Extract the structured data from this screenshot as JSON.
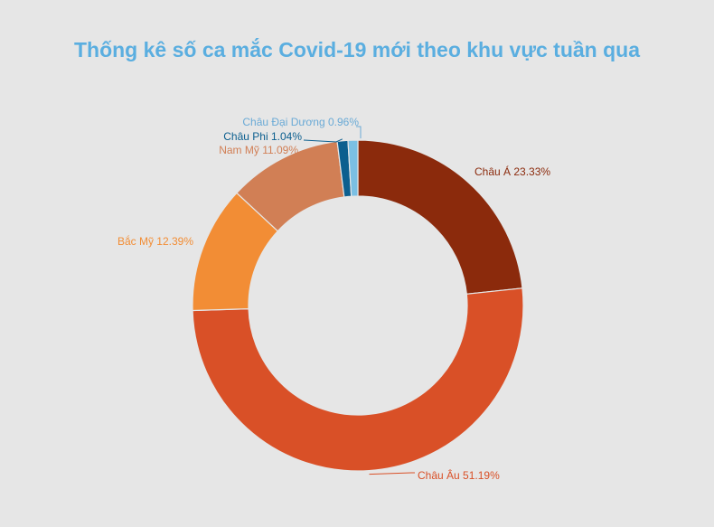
{
  "chart_data": {
    "type": "pie",
    "title": "Thống kê số ca mắc Covid-19 mới theo khu vực tuần qua",
    "categories": [
      "Châu Á",
      "Châu Âu",
      "Bắc Mỹ",
      "Nam Mỹ",
      "Châu Phi",
      "Châu Đại Dương"
    ],
    "values": [
      23.33,
      51.19,
      12.39,
      11.09,
      1.04,
      0.96
    ],
    "labels": [
      "Châu Á 23.33%",
      "Châu Âu 51.19%",
      "Bắc Mỹ 12.39%",
      "Nam Mỹ 11.09%",
      "Châu Phi  1.04%",
      "Châu Đại Dương 0.96%"
    ],
    "colors": [
      "#8b2a0c",
      "#d95027",
      "#f28d35",
      "#d17f55",
      "#0c5f8f",
      "#7bbfe3"
    ],
    "label_colors": [
      "#8b2a0c",
      "#d95027",
      "#f28d35",
      "#d17f55",
      "#0c5f8f",
      "#6aaad6"
    ],
    "legend": "none",
    "grid": false
  }
}
